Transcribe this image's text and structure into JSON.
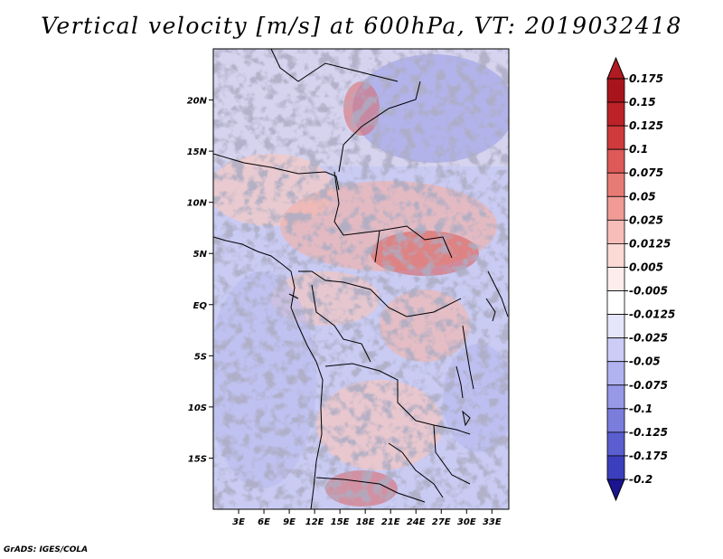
{
  "chart_data": {
    "type": "heatmap",
    "title": "Vertical velocity [m/s] at 600hPa, VT: 2019032418",
    "variable": "Vertical velocity",
    "units": "m/s",
    "level": "600hPa",
    "valid_time": "2019032418",
    "lon_range": [
      0,
      35
    ],
    "lat_range": [
      -20,
      25
    ],
    "x_ticks": [
      {
        "value": 3,
        "label": "3E"
      },
      {
        "value": 6,
        "label": "6E"
      },
      {
        "value": 9,
        "label": "9E"
      },
      {
        "value": 12,
        "label": "12E"
      },
      {
        "value": 15,
        "label": "15E"
      },
      {
        "value": 18,
        "label": "18E"
      },
      {
        "value": 21,
        "label": "21E"
      },
      {
        "value": 24,
        "label": "24E"
      },
      {
        "value": 27,
        "label": "27E"
      },
      {
        "value": 30,
        "label": "30E"
      },
      {
        "value": 33,
        "label": "33E"
      }
    ],
    "y_ticks": [
      {
        "value": 20,
        "label": "20N"
      },
      {
        "value": 15,
        "label": "15N"
      },
      {
        "value": 10,
        "label": "10N"
      },
      {
        "value": 5,
        "label": "5N"
      },
      {
        "value": 0,
        "label": "EQ"
      },
      {
        "value": -5,
        "label": "5S"
      },
      {
        "value": -10,
        "label": "10S"
      },
      {
        "value": -15,
        "label": "15S"
      }
    ],
    "colorbar": {
      "orientation": "vertical",
      "extend": "both",
      "levels": [
        {
          "label": "0.175",
          "color": "#a8141b"
        },
        {
          "label": "0.15",
          "color": "#bd2228"
        },
        {
          "label": "0.125",
          "color": "#cf3a3c"
        },
        {
          "label": "0.1",
          "color": "#dd5a58"
        },
        {
          "label": "0.075",
          "color": "#e87a76"
        },
        {
          "label": "0.05",
          "color": "#f09b96"
        },
        {
          "label": "0.025",
          "color": "#f7bdb8"
        },
        {
          "label": "0.0125",
          "color": "#fbd9d5"
        },
        {
          "label": "0.005",
          "color": "#fdeeec"
        },
        {
          "label": "-0.005",
          "color": "#ffffff"
        },
        {
          "label": "-0.0125",
          "color": "#e6e6fb"
        },
        {
          "label": "-0.025",
          "color": "#cccdf6"
        },
        {
          "label": "-0.05",
          "color": "#b1b2f0"
        },
        {
          "label": "-0.075",
          "color": "#9798e8"
        },
        {
          "label": "-0.1",
          "color": "#7b7ddd"
        },
        {
          "label": "-0.125",
          "color": "#5b5ecf"
        },
        {
          "label": "-0.175",
          "color": "#3b3fbd"
        },
        {
          "label": "-0.2",
          "color": "#2125a3"
        }
      ],
      "low_end_color": "#1a1490",
      "high_end_color": "#b01b22"
    }
  },
  "footer": {
    "credit": "GrADS: IGES/COLA"
  }
}
